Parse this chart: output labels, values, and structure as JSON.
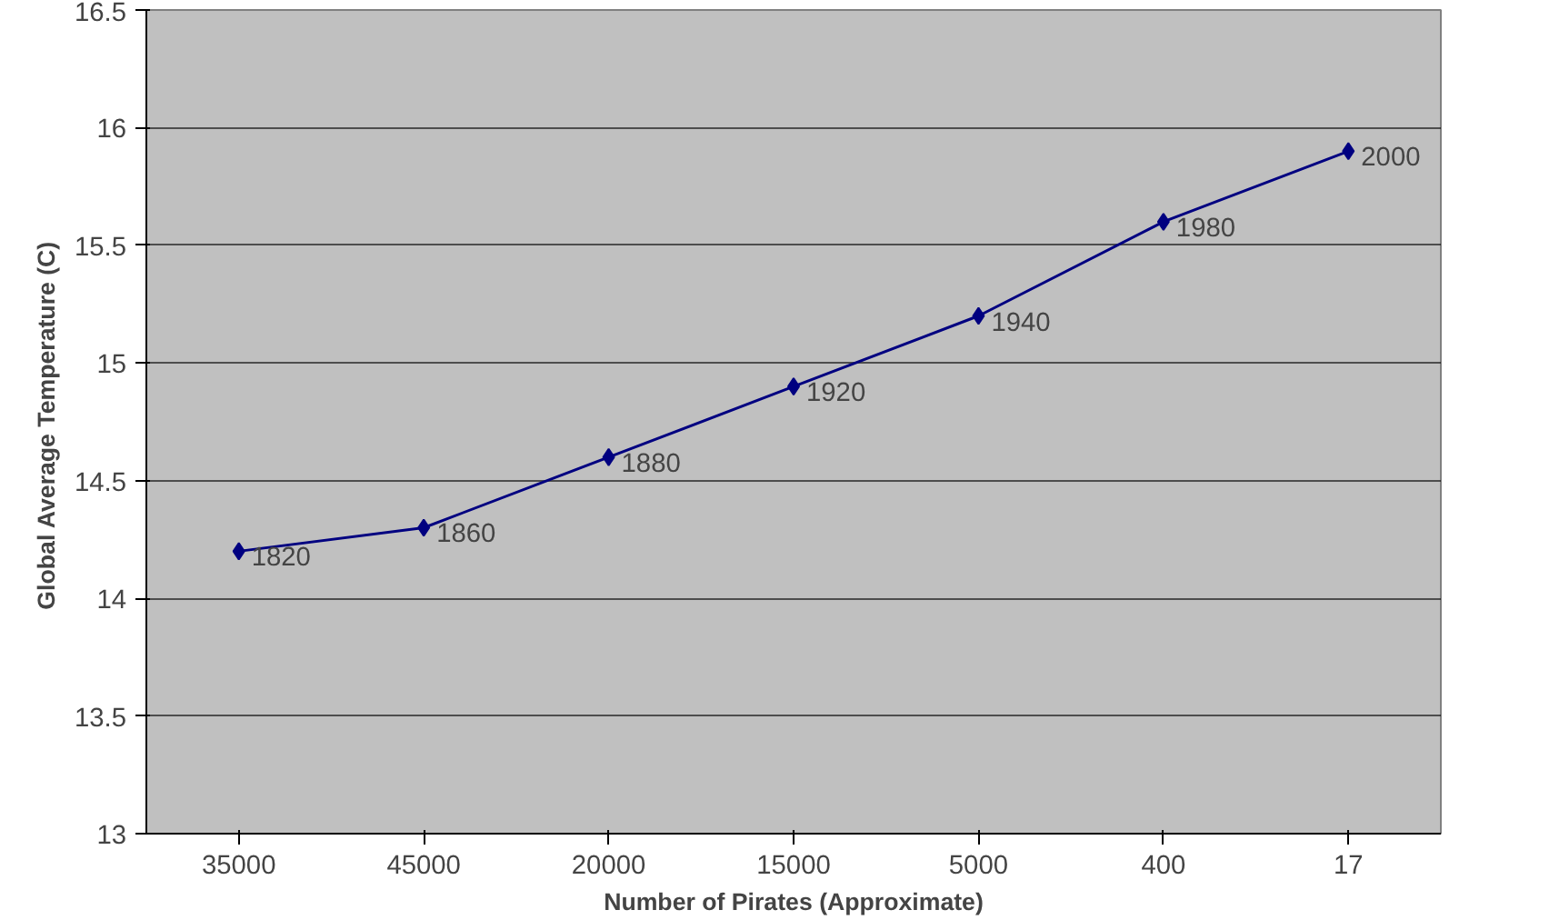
{
  "chart_data": {
    "type": "line",
    "xlabel": "Number of Pirates (Approximate)",
    "ylabel": "Global Average Temperature  (C)",
    "categories": [
      "35000",
      "45000",
      "20000",
      "15000",
      "5000",
      "400",
      "17"
    ],
    "series": [
      {
        "color": "#000080",
        "values": [
          14.2,
          14.3,
          14.6,
          14.9,
          15.2,
          15.6,
          15.9
        ]
      }
    ],
    "ylim": [
      13,
      16.5
    ],
    "yticks": [
      13,
      13.5,
      14,
      14.5,
      15,
      15.5,
      16,
      16.5
    ],
    "grid": "y",
    "marker": "diamond",
    "line_style": "solid",
    "annotations": [
      {
        "text": "1820",
        "x": "35000",
        "y": 14.2
      },
      {
        "text": "1860",
        "x": "45000",
        "y": 14.3
      },
      {
        "text": "1880",
        "x": "20000",
        "y": 14.6
      },
      {
        "text": "1920",
        "x": "15000",
        "y": 14.9
      },
      {
        "text": "1940",
        "x": "5000",
        "y": 15.2
      },
      {
        "text": "1980",
        "x": "400",
        "y": 15.6
      },
      {
        "text": "2000",
        "x": "17",
        "y": 15.9
      }
    ]
  }
}
